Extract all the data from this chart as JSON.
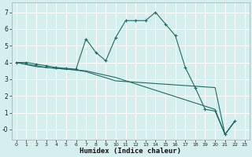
{
  "xlabel": "Humidex (Indice chaleur)",
  "bg_color": "#d4efed",
  "grid_color": "#ffffff",
  "line_color": "#1e6b62",
  "xlim": [
    -0.5,
    23.5
  ],
  "ylim": [
    -0.6,
    7.6
  ],
  "xticks": [
    0,
    1,
    2,
    3,
    4,
    5,
    6,
    7,
    8,
    9,
    10,
    11,
    12,
    13,
    14,
    15,
    16,
    17,
    18,
    19,
    20,
    21,
    22,
    23
  ],
  "yticks": [
    0,
    1,
    2,
    3,
    4,
    5,
    6,
    7
  ],
  "ytick_labels": [
    "-0",
    "1",
    "2",
    "3",
    "4",
    "5",
    "6",
    "7"
  ],
  "line1_x": [
    0,
    1,
    2,
    3,
    4,
    5,
    6,
    7,
    8,
    9,
    10,
    11,
    12,
    13,
    14,
    15,
    16,
    17,
    18,
    19,
    20,
    21,
    22
  ],
  "line1_y": [
    4.0,
    4.0,
    3.9,
    3.8,
    3.7,
    3.65,
    3.6,
    5.4,
    4.6,
    4.1,
    5.5,
    6.5,
    6.5,
    6.5,
    7.0,
    6.3,
    5.6,
    3.7,
    2.5,
    1.2,
    1.1,
    -0.3,
    0.5
  ],
  "line2_x": [
    0,
    2,
    3,
    4,
    5,
    6,
    7,
    10,
    20,
    21,
    22
  ],
  "line2_y": [
    4.0,
    3.8,
    3.7,
    3.65,
    3.6,
    3.55,
    3.5,
    3.1,
    1.2,
    -0.3,
    0.5
  ],
  "line3_x": [
    0,
    2,
    3,
    4,
    5,
    6,
    7,
    10,
    20,
    21,
    22
  ],
  "line3_y": [
    4.0,
    3.75,
    3.7,
    3.65,
    3.6,
    3.55,
    3.45,
    2.9,
    2.5,
    -0.3,
    0.5
  ]
}
